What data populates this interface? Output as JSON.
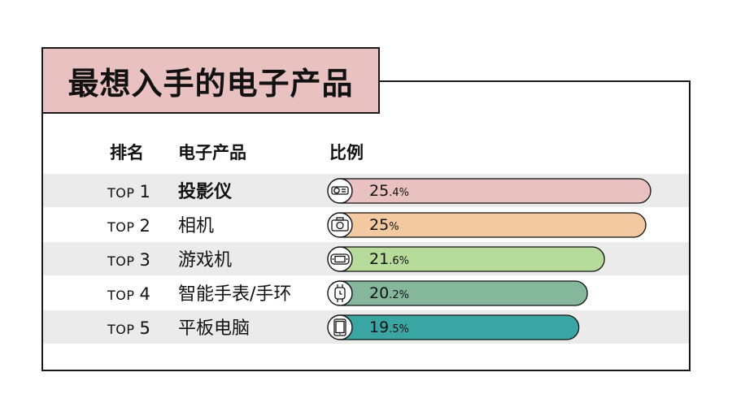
{
  "title": "最想入手的电子产品",
  "headers": {
    "rank": "排名",
    "product": "电子产品",
    "ratio": "比例"
  },
  "colors": {
    "title_bg": "#e8c1c0",
    "bars": [
      "#e8c1c0",
      "#f2c9a1",
      "#b6db9a",
      "#84b79c",
      "#3aa6a3"
    ]
  },
  "chart_data": {
    "type": "bar",
    "orientation": "horizontal",
    "title": "最想入手的电子产品",
    "columns": [
      "排名",
      "电子产品",
      "比例"
    ],
    "categories": [
      "投影仪",
      "相机",
      "游戏机",
      "智能手表/手环",
      "平板电脑"
    ],
    "ranks": [
      "TOP 1",
      "TOP 2",
      "TOP 3",
      "TOP 4",
      "TOP 5"
    ],
    "values": [
      25.4,
      25,
      21.6,
      20.2,
      19.5
    ],
    "unit": "%",
    "icons": [
      "projector-icon",
      "camera-icon",
      "game-console-icon",
      "smartwatch-icon",
      "tablet-icon"
    ],
    "rows": [
      {
        "top": "TOP",
        "num": "1",
        "name": "投影仪",
        "int": "25",
        "dec": ".4%"
      },
      {
        "top": "TOP",
        "num": "2",
        "name": "相机",
        "int": "25",
        "dec": "%"
      },
      {
        "top": "TOP",
        "num": "3",
        "name": "游戏机",
        "int": "21",
        "dec": ".6%"
      },
      {
        "top": "TOP",
        "num": "4",
        "name": "智能手表/手环",
        "int": "20",
        "dec": ".2%"
      },
      {
        "top": "TOP",
        "num": "5",
        "name": "平板电脑",
        "int": "19",
        "dec": ".5%"
      }
    ]
  }
}
